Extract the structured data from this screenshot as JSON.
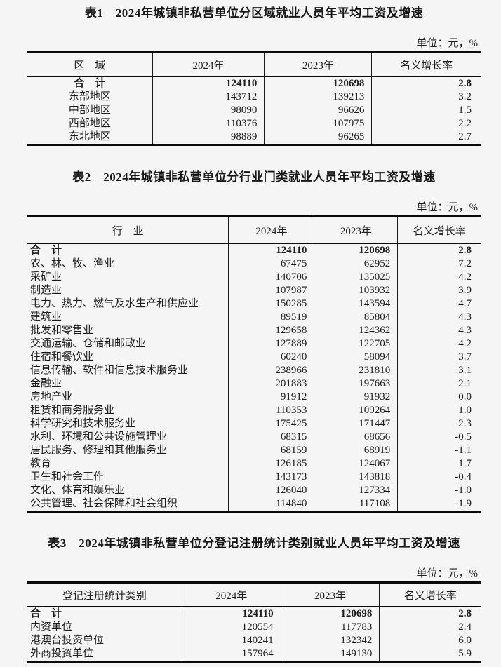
{
  "colors": {
    "background": "#f5f5f5",
    "text": "#1c1c1c",
    "border": "#0a0a0a"
  },
  "tables": [
    {
      "title": "表1　2024年城镇非私营单位分区域就业人员年平均工资及增速",
      "unit": "单位：元，%",
      "columns": [
        "区　域",
        "2024年",
        "2023年",
        "名义增长率"
      ],
      "rows": [
        {
          "label": "合　计",
          "y2024": "124110",
          "y2023": "120698",
          "growth": "2.8",
          "bold": true
        },
        {
          "label": "东部地区",
          "y2024": "143712",
          "y2023": "139213",
          "growth": "3.2"
        },
        {
          "label": "中部地区",
          "y2024": "98090",
          "y2023": "96626",
          "growth": "1.5"
        },
        {
          "label": "西部地区",
          "y2024": "110376",
          "y2023": "107975",
          "growth": "2.2"
        },
        {
          "label": "东北地区",
          "y2024": "98889",
          "y2023": "96265",
          "growth": "2.7"
        }
      ]
    },
    {
      "title": "表2　2024年城镇非私营单位分行业门类就业人员年平均工资及增速",
      "unit": "单位：元，%",
      "columns": [
        "行　业",
        "2024年",
        "2023年",
        "名义增长率"
      ],
      "rows": [
        {
          "label": "合　计",
          "y2024": "124110",
          "y2023": "120698",
          "growth": "2.8",
          "bold": true
        },
        {
          "label": "农、林、牧、渔业",
          "y2024": "67475",
          "y2023": "62952",
          "growth": "7.2"
        },
        {
          "label": "采矿业",
          "y2024": "140706",
          "y2023": "135025",
          "growth": "4.2"
        },
        {
          "label": "制造业",
          "y2024": "107987",
          "y2023": "103932",
          "growth": "3.9"
        },
        {
          "label": "电力、热力、燃气及水生产和供应业",
          "y2024": "150285",
          "y2023": "143594",
          "growth": "4.7"
        },
        {
          "label": "建筑业",
          "y2024": "89519",
          "y2023": "85804",
          "growth": "4.3"
        },
        {
          "label": "批发和零售业",
          "y2024": "129658",
          "y2023": "124362",
          "growth": "4.3"
        },
        {
          "label": "交通运输、仓储和邮政业",
          "y2024": "127889",
          "y2023": "122705",
          "growth": "4.2"
        },
        {
          "label": "住宿和餐饮业",
          "y2024": "60240",
          "y2023": "58094",
          "growth": "3.7"
        },
        {
          "label": "信息传输、软件和信息技术服务业",
          "y2024": "238966",
          "y2023": "231810",
          "growth": "3.1"
        },
        {
          "label": "金融业",
          "y2024": "201883",
          "y2023": "197663",
          "growth": "2.1"
        },
        {
          "label": "房地产业",
          "y2024": "91912",
          "y2023": "91932",
          "growth": "0.0"
        },
        {
          "label": "租赁和商务服务业",
          "y2024": "110353",
          "y2023": "109264",
          "growth": "1.0"
        },
        {
          "label": "科学研究和技术服务业",
          "y2024": "175425",
          "y2023": "171447",
          "growth": "2.3"
        },
        {
          "label": "水利、环境和公共设施管理业",
          "y2024": "68315",
          "y2023": "68656",
          "growth": "-0.5"
        },
        {
          "label": "居民服务、修理和其他服务业",
          "y2024": "68159",
          "y2023": "68919",
          "growth": "-1.1"
        },
        {
          "label": "教育",
          "y2024": "126185",
          "y2023": "124067",
          "growth": "1.7"
        },
        {
          "label": "卫生和社会工作",
          "y2024": "143173",
          "y2023": "143818",
          "growth": "-0.4"
        },
        {
          "label": "文化、体育和娱乐业",
          "y2024": "126040",
          "y2023": "127334",
          "growth": "-1.0"
        },
        {
          "label": "公共管理、社会保障和社会组织",
          "y2024": "114840",
          "y2023": "117108",
          "growth": "-1.9"
        }
      ]
    },
    {
      "title": "表3　2024年城镇非私营单位分登记注册统计类别就业人员年平均工资及增速",
      "unit": "单位：元，%",
      "columns": [
        "登记注册统计类别",
        "2024年",
        "2023年",
        "名义增长率"
      ],
      "rows": [
        {
          "label": "合　计",
          "y2024": "124110",
          "y2023": "120698",
          "growth": "2.8",
          "bold": true
        },
        {
          "label": "内资单位",
          "y2024": "120554",
          "y2023": "117783",
          "growth": "2.4"
        },
        {
          "label": "港澳台投资单位",
          "y2024": "140241",
          "y2023": "132342",
          "growth": "6.0"
        },
        {
          "label": "外商投资单位",
          "y2024": "157964",
          "y2023": "149130",
          "growth": "5.9"
        }
      ]
    }
  ]
}
